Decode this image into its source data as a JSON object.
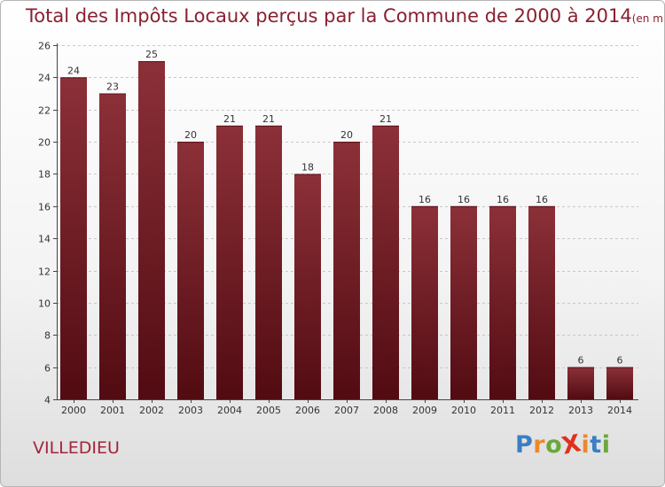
{
  "title": "Total des Impôts Locaux perçus par la Commune de 2000 à 2014",
  "title_unit": "(en milliers d'€)",
  "commune": "VILLEDIEU",
  "logo": {
    "text": "ProXiti",
    "letter_colors": [
      "#3a7fc4",
      "#e98a2e",
      "#6aa83a",
      "#e0311e",
      "#e98a2e",
      "#3a7fc4",
      "#6aa83a"
    ]
  },
  "colors": {
    "bar_top": "#8c3038",
    "bar_bottom": "#520b12",
    "axis": "#444444",
    "grid": "#c8c8c8",
    "text": "#333333"
  },
  "chart_data": {
    "type": "bar",
    "title": "Total des Impôts Locaux perçus par la Commune de 2000 à 2014",
    "xlabel": "",
    "ylabel": "",
    "categories": [
      "2000",
      "2001",
      "2002",
      "2003",
      "2004",
      "2005",
      "2006",
      "2007",
      "2008",
      "2009",
      "2010",
      "2011",
      "2012",
      "2013",
      "2014"
    ],
    "values": [
      24,
      23,
      25,
      20,
      21,
      21,
      18,
      20,
      21,
      16,
      16,
      16,
      16,
      6,
      6
    ],
    "ylim": [
      4,
      26
    ],
    "yticks": [
      4,
      6,
      8,
      10,
      12,
      14,
      16,
      18,
      20,
      22,
      24,
      26
    ],
    "grid": true
  }
}
